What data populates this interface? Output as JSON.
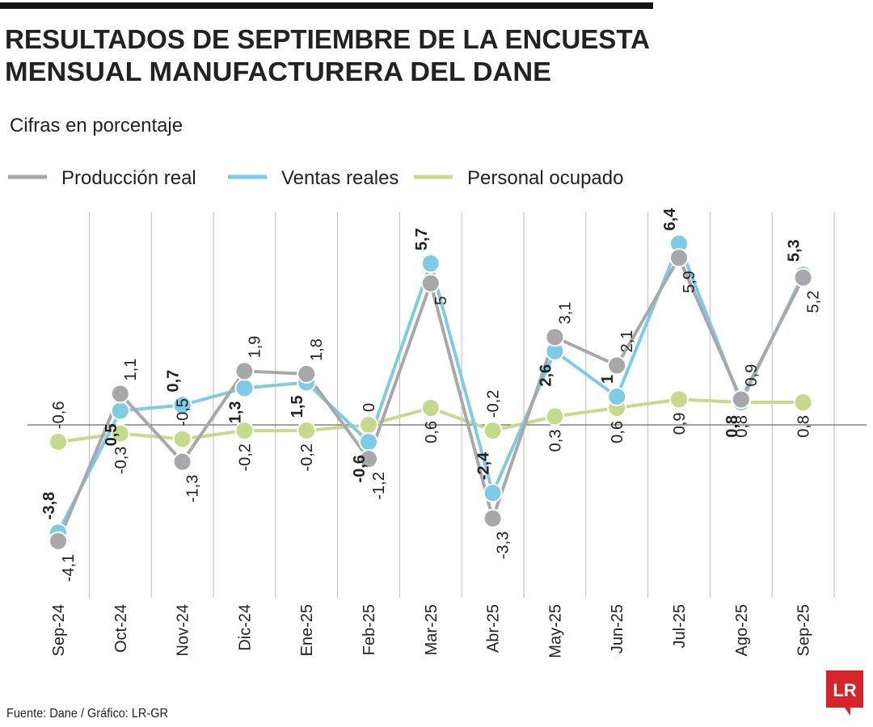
{
  "chart_data": {
    "type": "line",
    "title": [
      "RESULTADOS DE SEPTIEMBRE DE LA ENCUESTA",
      "MENSUAL MANUFACTURERA DEL DANE"
    ],
    "subtitle": "Cifras en porcentaje",
    "source": "Fuente: Dane / Gráfico: LR-GR",
    "logo": "LR",
    "categories": [
      "Sep-24",
      "Oct-24",
      "Nov-24",
      "Dic-24",
      "Ene-25",
      "Feb-25",
      "Mar-25",
      "Abr-25",
      "May-25",
      "Jun-25",
      "Jul-25",
      "Ago-25",
      "Sep-25"
    ],
    "ylim": [
      -6.1,
      7.5
    ],
    "series": [
      {
        "name": "Producción real",
        "color": "#a8a8aa",
        "label_weight": "normal",
        "values": [
          -4.1,
          1.1,
          -1.3,
          1.9,
          1.8,
          -1.2,
          5,
          -3.3,
          3.1,
          2.1,
          5.9,
          0.9,
          5.2
        ],
        "value_labels": [
          "-4,1",
          "1,1",
          "-1,3",
          "1,9",
          "1,8",
          "-1,2",
          "5",
          "-3,3",
          "3,1",
          "2,1",
          "5,9",
          "0,9",
          "5,2"
        ]
      },
      {
        "name": "Ventas reales",
        "color": "#7fcae4",
        "label_weight": "bold",
        "values": [
          -3.8,
          0.5,
          0.7,
          1.3,
          1.5,
          -0.6,
          5.7,
          -2.4,
          2.6,
          1,
          6.4,
          0.8,
          5.3
        ],
        "value_labels": [
          "-3,8",
          "0,5",
          "0,7",
          "1,3",
          "1,5",
          "-0,6",
          "5,7",
          "-2,4",
          "2,6",
          "1",
          "6,4",
          "0,8",
          "5,3"
        ]
      },
      {
        "name": "Personal ocupado",
        "color": "#c6da8c",
        "label_weight": "normal",
        "values": [
          -0.6,
          -0.3,
          -0.5,
          -0.2,
          -0.2,
          0,
          0.6,
          -0.2,
          0.3,
          0.6,
          0.9,
          0.8,
          0.8
        ],
        "value_labels": [
          "-0,6",
          "-0,3",
          "-0,5",
          "-0,2",
          "-0,2",
          "0",
          "0,6",
          "-0,2",
          "0,3",
          "0,6",
          "0,9",
          "0,8",
          "0,8"
        ]
      }
    ]
  }
}
